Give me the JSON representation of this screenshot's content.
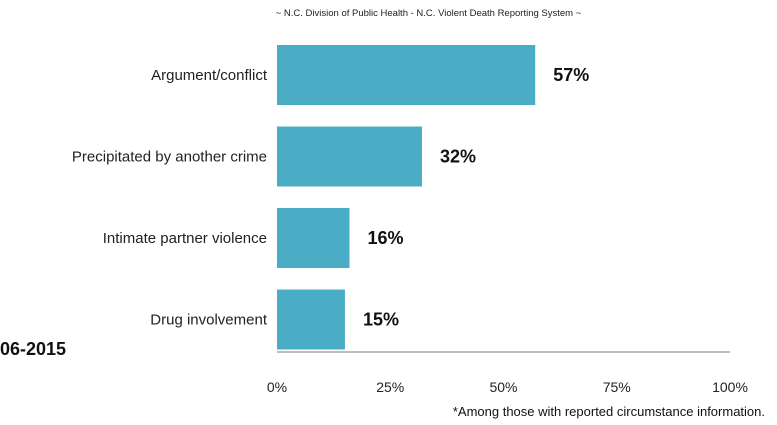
{
  "source_note": "~ N.C. Division of Public Health - N.C. Violent Death Reporting System ~",
  "side_label": "06-2015",
  "footnote": "*Among those with reported circumstance information.",
  "colors": {
    "bar": "#4BACC6",
    "axis": "#7F7F7F"
  },
  "chart_data": {
    "type": "bar",
    "orientation": "horizontal",
    "title": "",
    "xlabel": "",
    "ylabel": "",
    "xlim": [
      0,
      100
    ],
    "x_ticks": [
      "0%",
      "25%",
      "50%",
      "75%",
      "100%"
    ],
    "x_tick_values": [
      0,
      25,
      50,
      75,
      100
    ],
    "grid": false,
    "categories": [
      "Argument/conflict",
      "Precipitated by another crime",
      "Intimate partner violence",
      "Drug involvement"
    ],
    "values": [
      57,
      32,
      16,
      15
    ],
    "value_labels": [
      "57%",
      "32%",
      "16%",
      "15%"
    ]
  }
}
